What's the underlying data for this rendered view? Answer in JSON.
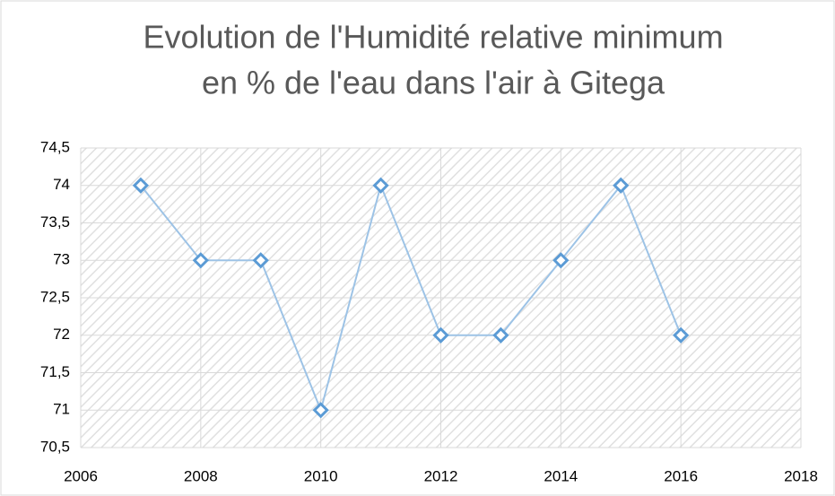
{
  "chart_data": {
    "type": "line",
    "title": [
      "Evolution de l'Humidité relative minimum",
      "en % de l'eau dans l'air à Gitega"
    ],
    "x": [
      2007,
      2008,
      2009,
      2010,
      2011,
      2012,
      2013,
      2014,
      2015,
      2016
    ],
    "series": [
      {
        "color": "#5b9bd5",
        "line_color": "#9dc3e6",
        "values": [
          74,
          73,
          73,
          71,
          74,
          72,
          72,
          73,
          74,
          72
        ]
      }
    ],
    "xlim": [
      2006,
      2018
    ],
    "xticks": [
      2006,
      2008,
      2010,
      2012,
      2014,
      2016,
      2018
    ],
    "ylim": [
      70.5,
      74.5
    ],
    "yticks": [
      {
        "value": 70.5,
        "label": "70,5"
      },
      71,
      {
        "value": 71.5,
        "label": "71,5"
      },
      72,
      {
        "value": 72.5,
        "label": "72,5"
      },
      73,
      {
        "value": 73.5,
        "label": "73,5"
      },
      74,
      {
        "value": 74.5,
        "label": "74,5"
      }
    ],
    "grid": true
  }
}
